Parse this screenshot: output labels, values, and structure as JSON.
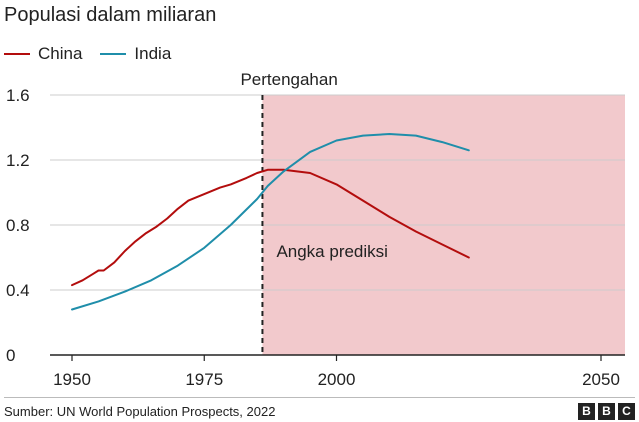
{
  "header": {
    "title": "Populasi dalam miliaran"
  },
  "legend": {
    "items": [
      {
        "label": "China",
        "color": "#b30d0d"
      },
      {
        "label": "India",
        "color": "#1f8eaa"
      }
    ]
  },
  "footer": {
    "source": "Sumber: UN World Population Prospects, 2022",
    "logo": [
      "B",
      "B",
      "C"
    ]
  },
  "chart_data": {
    "type": "line",
    "title": "Populasi dalam miliaran",
    "xlabel": "",
    "ylabel": "",
    "xlim": [
      1950,
      2050
    ],
    "ylim": [
      0,
      1.6
    ],
    "xticks": [
      1950,
      1975,
      2000,
      2050
    ],
    "xtick_labels": [
      "1950",
      "1975",
      "2000",
      "2050"
    ],
    "yticks": [
      0,
      0.4,
      0.8,
      1.2,
      1.6
    ],
    "ytick_labels": [
      "0",
      "0.4",
      "0.8",
      "1.2",
      "1.6"
    ],
    "grid": true,
    "divider": {
      "x": 1986,
      "label": "Pertengahan"
    },
    "forecast_region": {
      "x_start": 1986,
      "x_end": 2052,
      "label": "Angka prediksi",
      "color": "#f2c9cc"
    },
    "series": [
      {
        "name": "China",
        "color": "#b30d0d",
        "points": [
          [
            1950,
            0.43
          ],
          [
            1952,
            0.46
          ],
          [
            1954,
            0.5
          ],
          [
            1955,
            0.52
          ],
          [
            1956,
            0.52
          ],
          [
            1958,
            0.57
          ],
          [
            1960,
            0.64
          ],
          [
            1962,
            0.7
          ],
          [
            1964,
            0.75
          ],
          [
            1966,
            0.79
          ],
          [
            1968,
            0.84
          ],
          [
            1970,
            0.9
          ],
          [
            1972,
            0.95
          ],
          [
            1975,
            0.99
          ],
          [
            1978,
            1.03
          ],
          [
            1980,
            1.05
          ],
          [
            1983,
            1.09
          ],
          [
            1985,
            1.12
          ],
          [
            1987,
            1.14
          ],
          [
            1990,
            1.14
          ],
          [
            1995,
            1.12
          ],
          [
            2000,
            1.05
          ],
          [
            2005,
            0.95
          ],
          [
            2010,
            0.85
          ],
          [
            2015,
            0.76
          ],
          [
            2020,
            0.68
          ],
          [
            2025,
            0.6
          ]
        ]
      },
      {
        "name": "India",
        "color": "#1f8eaa",
        "points": [
          [
            1950,
            0.28
          ],
          [
            1955,
            0.33
          ],
          [
            1960,
            0.39
          ],
          [
            1965,
            0.46
          ],
          [
            1970,
            0.55
          ],
          [
            1975,
            0.66
          ],
          [
            1980,
            0.8
          ],
          [
            1985,
            0.96
          ],
          [
            1987,
            1.04
          ],
          [
            1990,
            1.13
          ],
          [
            1995,
            1.25
          ],
          [
            2000,
            1.32
          ],
          [
            2005,
            1.35
          ],
          [
            2010,
            1.36
          ],
          [
            2015,
            1.35
          ],
          [
            2020,
            1.31
          ],
          [
            2025,
            1.26
          ]
        ]
      }
    ]
  }
}
